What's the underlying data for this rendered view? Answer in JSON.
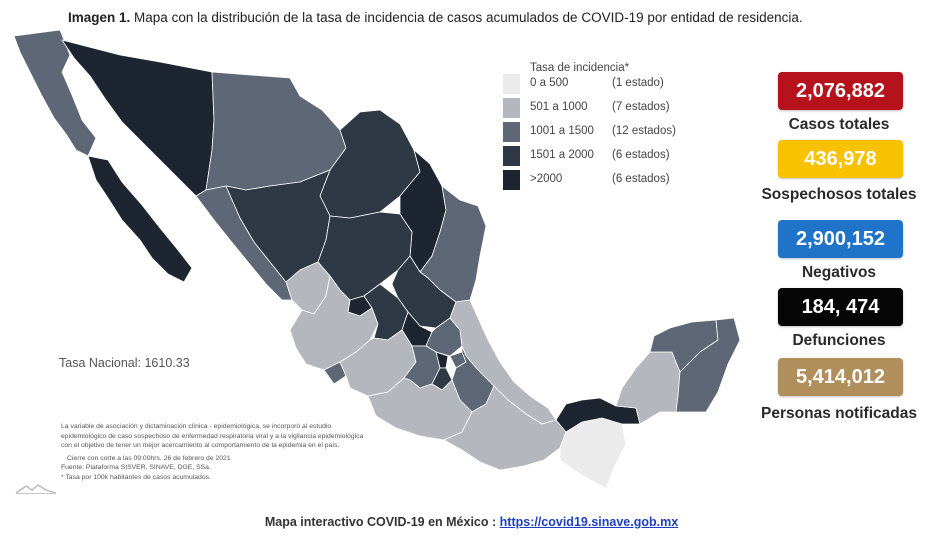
{
  "title": {
    "prefix": "Imagen 1.",
    "text": "Mapa con la distribución de la tasa de incidencia de casos acumulados de COVID-19 por entidad de residencia."
  },
  "legend": {
    "title": "Tasa de incidencia*",
    "items": [
      {
        "range": "0 a 500",
        "count": "(1 estado)",
        "color": "#ebebeb"
      },
      {
        "range": "501 a 1000",
        "count": "(7 estados)",
        "color": "#b4b8be"
      },
      {
        "range": "1001 a 1500",
        "count": "(12 estados)",
        "color": "#5d6775"
      },
      {
        "range": "1501 a 2000",
        "count": "(6 estados)",
        "color": "#2f3945"
      },
      {
        "range": ">2000",
        "count": "(6 estados)",
        "color": "#1c2530"
      }
    ]
  },
  "tasa_nacional": "Tasa Nacional: 1610.33",
  "notes": [
    "La variable de asociación y dictaminación clínica - epidemiológica, se incorporó al estudio",
    "epidemiológico de caso sospechoso de enfermedad respiratoria viral y a la vigilancia epidemiológica",
    "con el objetivo de tener un mejor acercamiento al comportamiento de la epidemia en el país.",
    "Cierre con corte a las 09:00hrs, 26 de febrero de 2021",
    "Fuente: Plataforma SISVER, SINAVE, DGE, SSa.",
    "* Tasa por 100k habitantes de casos acumulados."
  ],
  "stats": [
    {
      "value": "2,076,882",
      "label": "Casos totales",
      "color": "#b5121b"
    },
    {
      "value": "436,978",
      "label": "Sospechosos totales",
      "color": "#f9c200"
    },
    {
      "value": "2,900,152",
      "label": "Negativos",
      "color": "#1f74c9"
    },
    {
      "value": "184, 474",
      "label": "Defunciones",
      "color": "#050505"
    },
    {
      "value": "5,414,012",
      "label": "Personas notificadas",
      "color": "#b08f5c"
    }
  ],
  "footer": {
    "text": "Mapa interactivo COVID-19 en México :",
    "link": "https://covid19.sinave.gob.mx"
  }
}
